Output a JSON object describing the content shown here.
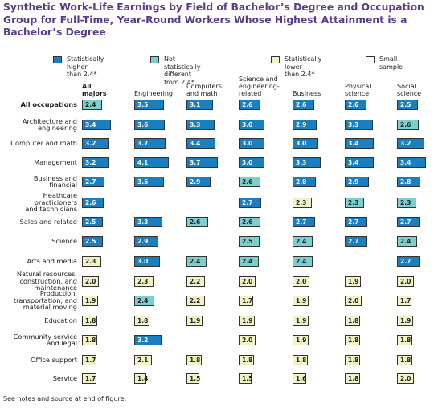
{
  "title": "Synthetic Work-Life Earnings by Field of Bachelor’s Degree and Occupation Group for Full-Time, Year-Round Workers Whose Highest Attainment is a Bachelor’s Degree",
  "legend": [
    {
      "key": "higher",
      "label": "Statistically higher\nthan 2.4*",
      "color": "#1a7fc1"
    },
    {
      "key": "nodiff",
      "label": "Not statistically different\nfrom 2.4*",
      "color": "#7ccfcf"
    },
    {
      "key": "lower",
      "label": "Statistically lower\nthan 2.4*",
      "color": "#f3f2c6"
    },
    {
      "key": "small",
      "label": "Small sample",
      "color": "#ffffff"
    }
  ],
  "footnote": "See notes and source at end of figure.",
  "chart_data": {
    "type": "table",
    "reference_value": 2.4,
    "columns": [
      "All\nmajors",
      "Engineering",
      "Computers\nand math",
      "Science and\nengineering-\nrelated",
      "Business",
      "Physical\nscience",
      "Social\nscience"
    ],
    "rows": [
      {
        "label": "All occupations",
        "bold": true,
        "cells": [
          [
            2.4,
            "nodiff"
          ],
          [
            3.5,
            "higher"
          ],
          [
            3.1,
            "higher"
          ],
          [
            2.6,
            "higher"
          ],
          [
            2.6,
            "higher"
          ],
          [
            2.6,
            "higher"
          ],
          [
            2.5,
            "higher"
          ]
        ]
      },
      {
        "label": "Architecture and\nengineering",
        "cells": [
          [
            3.4,
            "higher"
          ],
          [
            3.6,
            "higher"
          ],
          [
            3.3,
            "higher"
          ],
          [
            3.0,
            "higher"
          ],
          [
            2.9,
            "higher"
          ],
          [
            3.3,
            "higher"
          ],
          [
            2.6,
            "nodiff"
          ]
        ]
      },
      {
        "label": "Computer and math",
        "cells": [
          [
            3.2,
            "higher"
          ],
          [
            3.7,
            "higher"
          ],
          [
            3.4,
            "higher"
          ],
          [
            3.0,
            "higher"
          ],
          [
            3.0,
            "higher"
          ],
          [
            3.4,
            "higher"
          ],
          [
            3.2,
            "higher"
          ]
        ]
      },
      {
        "label": "Management",
        "cells": [
          [
            3.2,
            "higher"
          ],
          [
            4.1,
            "higher"
          ],
          [
            3.7,
            "higher"
          ],
          [
            3.0,
            "higher"
          ],
          [
            3.3,
            "higher"
          ],
          [
            3.4,
            "higher"
          ],
          [
            3.4,
            "higher"
          ]
        ]
      },
      {
        "label": "Business and\nfinancial",
        "cells": [
          [
            2.7,
            "higher"
          ],
          [
            3.5,
            "higher"
          ],
          [
            2.9,
            "higher"
          ],
          [
            2.6,
            "nodiff"
          ],
          [
            2.8,
            "higher"
          ],
          [
            2.9,
            "higher"
          ],
          [
            2.8,
            "higher"
          ]
        ]
      },
      {
        "label": "Heathcare\npracticioners\nand technicians",
        "cells": [
          [
            2.6,
            "higher"
          ],
          null,
          null,
          [
            2.7,
            "higher"
          ],
          [
            2.3,
            "lower"
          ],
          [
            2.3,
            "nodiff"
          ],
          [
            2.3,
            "nodiff"
          ]
        ]
      },
      {
        "label": "Sales and related",
        "cells": [
          [
            2.5,
            "higher"
          ],
          [
            3.3,
            "higher"
          ],
          [
            2.6,
            "nodiff"
          ],
          [
            2.6,
            "nodiff"
          ],
          [
            2.7,
            "higher"
          ],
          [
            2.7,
            "higher"
          ],
          [
            2.7,
            "higher"
          ]
        ]
      },
      {
        "label": "Science",
        "cells": [
          [
            2.5,
            "higher"
          ],
          [
            2.9,
            "higher"
          ],
          null,
          [
            2.5,
            "nodiff"
          ],
          [
            2.4,
            "nodiff"
          ],
          [
            2.7,
            "higher"
          ],
          [
            2.4,
            "nodiff"
          ]
        ]
      },
      {
        "label": "Arts and media",
        "cells": [
          [
            2.3,
            "lower"
          ],
          [
            3.0,
            "higher"
          ],
          [
            2.4,
            "nodiff"
          ],
          [
            2.4,
            "nodiff"
          ],
          [
            2.4,
            "nodiff"
          ],
          null,
          [
            2.7,
            "higher"
          ]
        ]
      },
      {
        "label": "Natural resources,\nconstruction, and\nmaintenance",
        "cells": [
          [
            2.0,
            "lower"
          ],
          [
            2.3,
            "lower"
          ],
          [
            2.2,
            "lower"
          ],
          [
            2.0,
            "lower"
          ],
          [
            2.0,
            "lower"
          ],
          [
            1.9,
            "lower"
          ],
          [
            2.0,
            "lower"
          ]
        ]
      },
      {
        "label": "Production,\ntransportation, and\nmaterial moving",
        "cells": [
          [
            1.9,
            "lower"
          ],
          [
            2.4,
            "nodiff"
          ],
          [
            2.2,
            "lower"
          ],
          [
            1.7,
            "lower"
          ],
          [
            1.9,
            "lower"
          ],
          [
            2.0,
            "lower"
          ],
          [
            1.7,
            "lower"
          ]
        ]
      },
      {
        "label": "Education",
        "cells": [
          [
            1.8,
            "lower"
          ],
          [
            1.8,
            "lower"
          ],
          [
            1.9,
            "lower"
          ],
          [
            1.9,
            "lower"
          ],
          [
            1.9,
            "lower"
          ],
          [
            1.8,
            "lower"
          ],
          [
            1.9,
            "lower"
          ]
        ]
      },
      {
        "label": "Community service\nand legal",
        "cells": [
          [
            1.8,
            "lower"
          ],
          [
            3.2,
            "higher"
          ],
          null,
          [
            2.0,
            "lower"
          ],
          [
            1.9,
            "lower"
          ],
          [
            1.8,
            "lower"
          ],
          [
            1.8,
            "lower"
          ]
        ]
      },
      {
        "label": "Office support",
        "cells": [
          [
            1.7,
            "lower"
          ],
          [
            2.1,
            "lower"
          ],
          [
            1.8,
            "lower"
          ],
          [
            1.8,
            "lower"
          ],
          [
            1.8,
            "lower"
          ],
          [
            1.8,
            "lower"
          ],
          [
            1.8,
            "lower"
          ]
        ]
      },
      {
        "label": "Service",
        "cells": [
          [
            1.7,
            "lower"
          ],
          [
            1.4,
            "lower"
          ],
          [
            1.5,
            "lower"
          ],
          [
            1.5,
            "lower"
          ],
          [
            1.6,
            "lower"
          ],
          [
            1.8,
            "lower"
          ],
          [
            2.0,
            "lower"
          ]
        ]
      }
    ]
  }
}
